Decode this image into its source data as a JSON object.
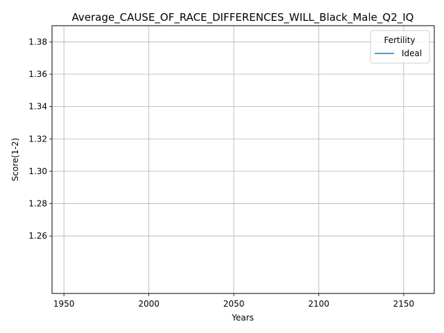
{
  "chart_data": {
    "type": "line",
    "title": "Average_CAUSE_OF_RACE_DIFFERENCES_WILL_Black_Male_Q2_IQ",
    "xlabel": "Years",
    "ylabel": "Score(1-2)",
    "xlim": [
      1943,
      2168
    ],
    "ylim": [
      1.2245,
      1.39
    ],
    "xticks": [
      1950,
      2000,
      2050,
      2100,
      2150
    ],
    "yticks": [
      1.26,
      1.28,
      1.3,
      1.32,
      1.34,
      1.36,
      1.38
    ],
    "ytick_labels": [
      "1.26",
      "1.28",
      "1.30",
      "1.32",
      "1.34",
      "1.36",
      "1.38"
    ],
    "grid": true,
    "legend": {
      "title": "Fertility",
      "placement": "top-right"
    },
    "series": [
      {
        "name": "Ideal",
        "color": "#1f77b4",
        "x": [],
        "y": []
      }
    ]
  }
}
